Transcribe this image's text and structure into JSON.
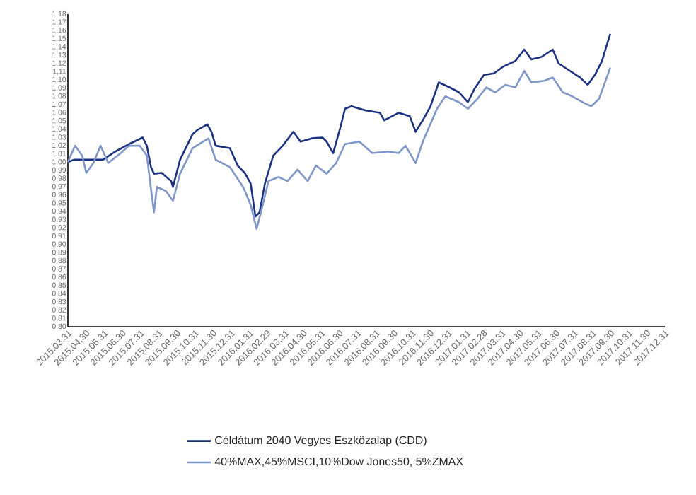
{
  "chart_data": {
    "type": "line",
    "legend": "bottom",
    "xlim": [
      "2015-03-31",
      "2017-12-31"
    ],
    "xticks": [
      {
        "value": "2015-03-31",
        "label": "2015.03.31"
      },
      {
        "value": "2015-04-30",
        "label": "2015.04.30"
      },
      {
        "value": "2015-05-31",
        "label": "2015.05.31"
      },
      {
        "value": "2015-06-30",
        "label": "2015.06.30"
      },
      {
        "value": "2015-07-31",
        "label": "2015.07.31"
      },
      {
        "value": "2015-08-31",
        "label": "2015.08.31"
      },
      {
        "value": "2015-09-30",
        "label": "2015.09.30"
      },
      {
        "value": "2015-10-31",
        "label": "2015.10.31"
      },
      {
        "value": "2015-11-30",
        "label": "2015.11.30"
      },
      {
        "value": "2015-12-31",
        "label": "2015.12.31"
      },
      {
        "value": "2016-01-31",
        "label": "2016.01.31"
      },
      {
        "value": "2016-02-29",
        "label": "2016.02.29"
      },
      {
        "value": "2016-03-31",
        "label": "2016.03.31"
      },
      {
        "value": "2016-04-30",
        "label": "2016.04.30"
      },
      {
        "value": "2016-05-31",
        "label": "2016.05.31"
      },
      {
        "value": "2016-06-30",
        "label": "2016.06.30"
      },
      {
        "value": "2016-07-31",
        "label": "2016.07.31"
      },
      {
        "value": "2016-08-31",
        "label": "2016.08.31"
      },
      {
        "value": "2016-09-30",
        "label": "2016.09.30"
      },
      {
        "value": "2016-10-31",
        "label": "2016.10.31"
      },
      {
        "value": "2016-11-30",
        "label": "2016.11.30"
      },
      {
        "value": "2016-12-31",
        "label": "2016.12.31"
      },
      {
        "value": "2017-01-31",
        "label": "2017.01.31"
      },
      {
        "value": "2017-02-28",
        "label": "2017.02.28"
      },
      {
        "value": "2017-03-31",
        "label": "2017.03.31"
      },
      {
        "value": "2017-04-30",
        "label": "2017.04.30"
      },
      {
        "value": "2017-05-31",
        "label": "2017.05.31"
      },
      {
        "value": "2017-06-30",
        "label": "2017.06.30"
      },
      {
        "value": "2017-07-31",
        "label": "2017.07.31"
      },
      {
        "value": "2017-08-31",
        "label": "2017.08.31"
      },
      {
        "value": "2017-09-30",
        "label": "2017.09.30"
      },
      {
        "value": "2017-10-31",
        "label": "2017.10.31"
      },
      {
        "value": "2017-11-30",
        "label": "2017.11.30"
      },
      {
        "value": "2017-12-31",
        "label": "2017.12.31"
      }
    ],
    "ylim": [
      0.8,
      1.18
    ],
    "yticks": [
      {
        "value": 0.8,
        "label": "0,80"
      },
      {
        "value": 0.81,
        "label": "0,81"
      },
      {
        "value": 0.82,
        "label": "0,82"
      },
      {
        "value": 0.83,
        "label": "0,83"
      },
      {
        "value": 0.84,
        "label": "0,84"
      },
      {
        "value": 0.85,
        "label": "0,85"
      },
      {
        "value": 0.86,
        "label": "0,86"
      },
      {
        "value": 0.87,
        "label": "0,87"
      },
      {
        "value": 0.88,
        "label": "0,88"
      },
      {
        "value": 0.89,
        "label": "0,89"
      },
      {
        "value": 0.9,
        "label": "0,90"
      },
      {
        "value": 0.91,
        "label": "0,91"
      },
      {
        "value": 0.92,
        "label": "0,92"
      },
      {
        "value": 0.93,
        "label": "0,93"
      },
      {
        "value": 0.94,
        "label": "0,94"
      },
      {
        "value": 0.95,
        "label": "0,95"
      },
      {
        "value": 0.96,
        "label": "0,96"
      },
      {
        "value": 0.97,
        "label": "0,97"
      },
      {
        "value": 0.98,
        "label": "0,98"
      },
      {
        "value": 0.99,
        "label": "0,99"
      },
      {
        "value": 1.0,
        "label": "1,00"
      },
      {
        "value": 1.01,
        "label": "1,01"
      },
      {
        "value": 1.02,
        "label": "1,02"
      },
      {
        "value": 1.03,
        "label": "1,03"
      },
      {
        "value": 1.04,
        "label": "1,04"
      },
      {
        "value": 1.05,
        "label": "1,05"
      },
      {
        "value": 1.06,
        "label": "1,06"
      },
      {
        "value": 1.07,
        "label": "1,07"
      },
      {
        "value": 1.08,
        "label": "1,08"
      },
      {
        "value": 1.09,
        "label": "1,09"
      },
      {
        "value": 1.1,
        "label": "1,10"
      },
      {
        "value": 1.11,
        "label": "1,11"
      },
      {
        "value": 1.12,
        "label": "1,12"
      },
      {
        "value": 1.13,
        "label": "1,13"
      },
      {
        "value": 1.14,
        "label": "1,14"
      },
      {
        "value": 1.15,
        "label": "1,15"
      },
      {
        "value": 1.16,
        "label": "1,16"
      },
      {
        "value": 1.17,
        "label": "1,17"
      },
      {
        "value": 1.18,
        "label": "1,18"
      }
    ],
    "series": [
      {
        "name": "Céldátum 2040 Vegyes Eszközalap (CDD)",
        "color": "#1b3282",
        "x": [
          "2015-03-31",
          "2015-04-10",
          "2015-05-29",
          "2015-06-19",
          "2015-07-12",
          "2015-08-04",
          "2015-08-11",
          "2015-08-18",
          "2015-08-23",
          "2015-09-05",
          "2015-09-21",
          "2015-09-24",
          "2015-10-06",
          "2015-10-27",
          "2015-11-04",
          "2015-11-21",
          "2015-11-28",
          "2015-12-05",
          "2015-12-29",
          "2016-01-11",
          "2016-01-23",
          "2016-02-02",
          "2016-02-10",
          "2016-02-17",
          "2016-02-26",
          "2016-03-11",
          "2016-03-27",
          "2016-04-14",
          "2016-04-26",
          "2016-05-15",
          "2016-06-02",
          "2016-06-09",
          "2016-06-20",
          "2016-07-02",
          "2016-07-10",
          "2016-07-21",
          "2016-08-13",
          "2016-09-07",
          "2016-09-14",
          "2016-10-08",
          "2016-10-27",
          "2016-11-06",
          "2016-11-18",
          "2016-12-01",
          "2016-12-15",
          "2017-01-02",
          "2017-01-18",
          "2017-02-02",
          "2017-02-13",
          "2017-03-01",
          "2017-03-18",
          "2017-04-02",
          "2017-04-23",
          "2017-05-08",
          "2017-05-20",
          "2017-06-06",
          "2017-06-25",
          "2017-07-05",
          "2017-07-24",
          "2017-08-10",
          "2017-08-23",
          "2017-09-04",
          "2017-09-16",
          "2017-09-23",
          "2017-09-30"
        ],
        "values": [
          1.0,
          1.003,
          1.003,
          1.013,
          1.022,
          1.03,
          1.02,
          0.994,
          0.986,
          0.987,
          0.977,
          0.97,
          1.003,
          1.034,
          1.039,
          1.046,
          1.037,
          1.02,
          1.017,
          0.996,
          0.987,
          0.974,
          0.934,
          0.939,
          0.974,
          1.008,
          1.02,
          1.037,
          1.025,
          1.029,
          1.03,
          1.025,
          1.011,
          1.042,
          1.065,
          1.068,
          1.063,
          1.06,
          1.051,
          1.06,
          1.056,
          1.037,
          1.051,
          1.068,
          1.097,
          1.091,
          1.085,
          1.073,
          1.089,
          1.106,
          1.108,
          1.116,
          1.123,
          1.137,
          1.125,
          1.128,
          1.137,
          1.12,
          1.111,
          1.103,
          1.094,
          1.106,
          1.123,
          1.14,
          1.156
        ]
      },
      {
        "name": "40%MAX,45%MSCI,10%Dow Jones50, 5%ZMAX",
        "color": "#7f96c8",
        "x": [
          "2015-03-31",
          "2015-04-12",
          "2015-04-24",
          "2015-05-01",
          "2015-05-13",
          "2015-05-25",
          "2015-06-07",
          "2015-06-28",
          "2015-07-12",
          "2015-07-30",
          "2015-08-11",
          "2015-08-23",
          "2015-08-28",
          "2015-09-12",
          "2015-09-24",
          "2015-10-06",
          "2015-10-27",
          "2015-11-23",
          "2015-12-05",
          "2015-12-29",
          "2016-01-21",
          "2016-02-02",
          "2016-02-12",
          "2016-02-21",
          "2016-03-03",
          "2016-03-20",
          "2016-04-04",
          "2016-04-21",
          "2016-05-08",
          "2016-05-22",
          "2016-06-09",
          "2016-06-25",
          "2016-07-10",
          "2016-08-03",
          "2016-08-25",
          "2016-09-21",
          "2016-10-08",
          "2016-10-20",
          "2016-11-06",
          "2016-11-18",
          "2016-12-12",
          "2016-12-26",
          "2017-01-18",
          "2017-02-02",
          "2017-02-18",
          "2017-03-05",
          "2017-03-20",
          "2017-04-06",
          "2017-04-23",
          "2017-05-08",
          "2017-05-20",
          "2017-06-11",
          "2017-06-25",
          "2017-07-12",
          "2017-07-28",
          "2017-08-17",
          "2017-08-29",
          "2017-09-11",
          "2017-09-18",
          "2017-09-30"
        ],
        "values": [
          1.0,
          1.02,
          1.008,
          0.987,
          0.999,
          1.02,
          0.999,
          1.011,
          1.02,
          1.02,
          1.008,
          0.939,
          0.97,
          0.965,
          0.953,
          0.986,
          1.017,
          1.029,
          1.003,
          0.994,
          0.969,
          0.948,
          0.919,
          0.944,
          0.977,
          0.982,
          0.977,
          0.991,
          0.977,
          0.996,
          0.986,
          0.999,
          1.022,
          1.025,
          1.011,
          1.013,
          1.011,
          1.02,
          0.999,
          1.025,
          1.065,
          1.08,
          1.073,
          1.065,
          1.077,
          1.091,
          1.085,
          1.094,
          1.091,
          1.111,
          1.097,
          1.099,
          1.103,
          1.085,
          1.08,
          1.072,
          1.068,
          1.077,
          1.091,
          1.115
        ]
      }
    ]
  }
}
